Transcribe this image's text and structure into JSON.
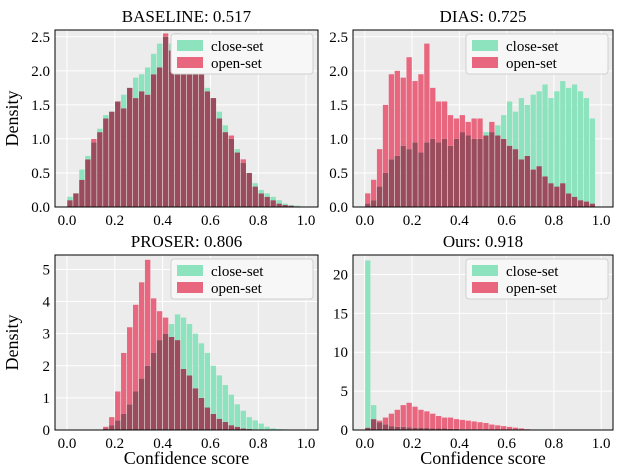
{
  "figure": {
    "colors": {
      "closed": "#8ee3bf",
      "open": "#e9667f",
      "overlap": "#9a4b5c",
      "panel_bg": "#ececec",
      "grid": "#ffffff"
    }
  },
  "chart_data": [
    {
      "type": "bar",
      "title": "BASELINE: 0.517",
      "xlabel": "",
      "ylabel": "Density",
      "xlim": [
        -0.05,
        1.05
      ],
      "ylim": [
        0,
        2.6
      ],
      "xticks": [
        "0.0",
        "0.2",
        "0.4",
        "0.6",
        "0.8",
        "1.0"
      ],
      "yticks": [
        "0.0",
        "0.5",
        "1.0",
        "1.5",
        "2.0",
        "2.5"
      ],
      "grid": true,
      "legend": "top-right",
      "bin_start": 0.0,
      "bin_width": 0.025,
      "series": [
        {
          "name": "close-set",
          "values": [
            0.15,
            0.2,
            0.55,
            0.75,
            0.95,
            1.15,
            1.35,
            1.4,
            1.55,
            1.65,
            1.75,
            1.9,
            1.95,
            2.05,
            2.25,
            2.4,
            2.5,
            2.4,
            2.45,
            2.3,
            2.2,
            2.05,
            1.95,
            1.75,
            1.6,
            1.4,
            1.2,
            1.0,
            0.85,
            0.65,
            0.5,
            0.35,
            0.25,
            0.2,
            0.15,
            0.1,
            0.05,
            0.03,
            0.02
          ]
        },
        {
          "name": "open-set",
          "values": [
            0.1,
            0.2,
            0.4,
            0.7,
            1.0,
            1.1,
            1.3,
            1.4,
            1.55,
            1.45,
            1.75,
            1.6,
            1.7,
            1.65,
            1.95,
            2.05,
            2.55,
            2.3,
            2.55,
            2.2,
            2.25,
            2.3,
            2.0,
            1.7,
            1.6,
            1.3,
            1.1,
            1.05,
            0.8,
            0.7,
            0.5,
            0.3,
            0.2,
            0.15,
            0.1,
            0.05,
            0.03,
            0.02,
            0.01
          ]
        }
      ]
    },
    {
      "type": "bar",
      "title": "DIAS: 0.725",
      "xlabel": "",
      "ylabel": "",
      "xlim": [
        -0.05,
        1.05
      ],
      "ylim": [
        0,
        2.6
      ],
      "xticks": [
        "0.0",
        "0.2",
        "0.4",
        "0.6",
        "0.8",
        "1.0"
      ],
      "yticks": [
        "0.0",
        "0.5",
        "1.0",
        "1.5",
        "2.0",
        "2.5"
      ],
      "grid": true,
      "legend": "top-right",
      "bin_start": 0.0,
      "bin_width": 0.025,
      "series": [
        {
          "name": "close-set",
          "values": [
            0.05,
            0.1,
            0.3,
            0.5,
            0.7,
            0.75,
            0.9,
            0.85,
            0.95,
            0.8,
            0.95,
            1.0,
            0.95,
            1.0,
            0.9,
            1.0,
            1.1,
            1.05,
            1.0,
            1.0,
            1.1,
            1.1,
            1.2,
            1.35,
            1.55,
            1.4,
            1.6,
            1.5,
            1.65,
            1.7,
            1.8,
            1.6,
            1.7,
            1.85,
            1.75,
            1.8,
            1.7,
            1.6,
            1.3
          ]
        },
        {
          "name": "open-set",
          "values": [
            0.2,
            0.4,
            0.85,
            1.5,
            1.95,
            2.0,
            1.9,
            2.2,
            1.85,
            1.95,
            2.4,
            1.75,
            1.55,
            1.55,
            1.35,
            1.3,
            1.35,
            1.25,
            1.3,
            1.3,
            1.05,
            1.25,
            1.05,
            1.0,
            0.9,
            0.85,
            0.7,
            0.75,
            0.55,
            0.6,
            0.45,
            0.35,
            0.3,
            0.35,
            0.2,
            0.15,
            0.1,
            0.08,
            0.05
          ]
        }
      ]
    },
    {
      "type": "bar",
      "title": "PROSER: 0.806",
      "xlabel": "Confidence score",
      "ylabel": "Density",
      "xlim": [
        -0.05,
        1.05
      ],
      "ylim": [
        0,
        5.45
      ],
      "xticks": [
        "0.0",
        "0.2",
        "0.4",
        "0.6",
        "0.8",
        "1.0"
      ],
      "yticks": [
        "0",
        "1",
        "2",
        "3",
        "4",
        "5"
      ],
      "grid": true,
      "legend": "top-right",
      "bin_start": 0.0,
      "bin_width": 0.025,
      "series": [
        {
          "name": "close-set",
          "values": [
            0,
            0,
            0,
            0,
            0,
            0,
            0.05,
            0.15,
            0.3,
            0.5,
            0.8,
            1.2,
            1.6,
            2.0,
            2.4,
            2.8,
            3.0,
            3.3,
            3.6,
            3.5,
            3.3,
            3.0,
            2.7,
            2.4,
            2.0,
            1.7,
            1.4,
            1.1,
            0.8,
            0.6,
            0.4,
            0.3,
            0.2,
            0.1,
            0.05,
            0.03,
            0.02,
            0,
            0
          ]
        },
        {
          "name": "open-set",
          "values": [
            0,
            0,
            0,
            0,
            0,
            0,
            0.1,
            0.4,
            1.2,
            2.4,
            3.2,
            3.9,
            4.6,
            5.3,
            4.1,
            3.7,
            3.5,
            2.9,
            2.8,
            1.9,
            1.7,
            1.3,
            1.0,
            0.7,
            0.5,
            0.35,
            0.25,
            0.15,
            0.1,
            0.05,
            0.03,
            0.02,
            0,
            0,
            0,
            0,
            0,
            0,
            0
          ]
        }
      ]
    },
    {
      "type": "bar",
      "title": "Ours: 0.918",
      "xlabel": "Confidence score",
      "ylabel": "",
      "xlim": [
        -0.05,
        1.05
      ],
      "ylim": [
        0,
        22.5
      ],
      "xticks": [
        "0.0",
        "0.2",
        "0.4",
        "0.6",
        "0.8",
        "1.0"
      ],
      "yticks": [
        "0",
        "5",
        "10",
        "15",
        "20"
      ],
      "grid": true,
      "legend": "top-right",
      "bin_start": 0.0,
      "bin_width": 0.025,
      "series": [
        {
          "name": "close-set",
          "values": [
            21.8,
            3.2,
            1.0,
            0.7,
            0.5,
            0.4,
            0.4,
            0.35,
            0.3,
            0.3,
            0.25,
            0.2,
            0.2,
            0.2,
            0.15,
            0.15,
            0.1,
            0.1,
            0.1,
            0.1,
            0.05,
            0.05,
            0.05,
            0.05,
            0.03,
            0.02,
            0.02,
            0.01,
            0.01,
            0,
            0,
            0,
            0,
            0,
            0,
            0,
            0,
            0,
            0
          ]
        },
        {
          "name": "open-set",
          "values": [
            0.3,
            1.4,
            1.2,
            1.6,
            2.1,
            2.6,
            3.2,
            3.5,
            3.0,
            2.6,
            2.4,
            2.1,
            1.8,
            1.6,
            1.6,
            1.4,
            1.3,
            1.2,
            1.1,
            1.0,
            0.9,
            0.7,
            0.6,
            0.5,
            0.4,
            0.3,
            0.2,
            0.1,
            0.05,
            0,
            0,
            0,
            0,
            0,
            0,
            0,
            0,
            0,
            0
          ]
        }
      ]
    }
  ]
}
